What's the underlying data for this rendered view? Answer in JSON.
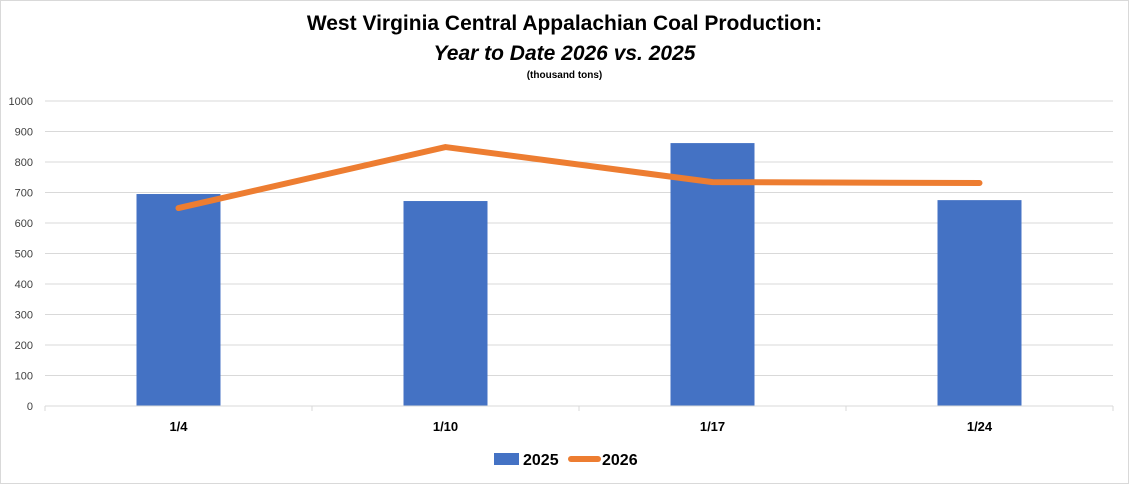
{
  "chart_data": {
    "type": "bar",
    "title": "West Virginia Central Appalachian Coal Production:",
    "subtitle": "Year to Date 2026 vs. 2025",
    "unit_note": "(thousand tons)",
    "categories": [
      "1/4",
      "1/10",
      "1/17",
      "1/24"
    ],
    "series": [
      {
        "name": "2025",
        "kind": "bar",
        "color": "#4472c4",
        "values": [
          695,
          672,
          862,
          675
        ]
      },
      {
        "name": "2026",
        "kind": "line",
        "color": "#ed7d31",
        "values": [
          649,
          849,
          734,
          731
        ]
      }
    ],
    "ylim": [
      0,
      1000
    ],
    "yticks": [
      0,
      100,
      200,
      300,
      400,
      500,
      600,
      700,
      800,
      900,
      1000
    ],
    "grid": true,
    "legend": "bottom"
  }
}
